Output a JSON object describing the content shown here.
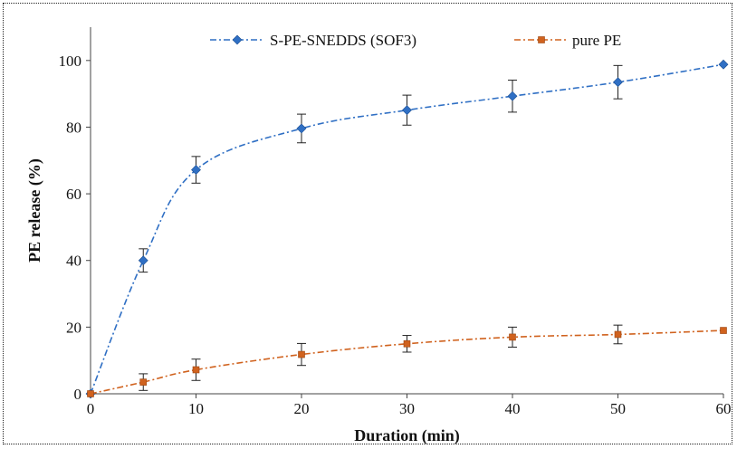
{
  "chart_data": {
    "type": "line",
    "title": "",
    "xlabel": "Duration (min)",
    "ylabel": "PE release (%)",
    "xlim": [
      0,
      60
    ],
    "ylim": [
      0,
      110
    ],
    "xticks": [
      "0",
      "10",
      "20",
      "30",
      "40",
      "50",
      "60"
    ],
    "yticks": [
      "0",
      "20",
      "40",
      "60",
      "80",
      "100"
    ],
    "grid": false,
    "legend_position": "top",
    "series": [
      {
        "name": "S-PE-SNEDDS (SOF3)",
        "color": "#2f6fc4",
        "marker": "diamond",
        "x": [
          0,
          5,
          10,
          20,
          30,
          40,
          50,
          60
        ],
        "y": [
          0,
          40,
          67.2,
          79.6,
          85.1,
          89.3,
          93.5,
          98.8
        ],
        "error": [
          0,
          3.5,
          4,
          4.3,
          4.5,
          4.8,
          5,
          0
        ]
      },
      {
        "name": "pure PE",
        "color": "#d0621e",
        "marker": "square",
        "x": [
          0,
          5,
          10,
          20,
          30,
          40,
          50,
          60
        ],
        "y": [
          0,
          3.5,
          7.2,
          11.8,
          15,
          17,
          17.8,
          19
        ],
        "error": [
          0,
          2.5,
          3.2,
          3.3,
          2.5,
          3,
          2.8,
          0
        ]
      }
    ]
  }
}
